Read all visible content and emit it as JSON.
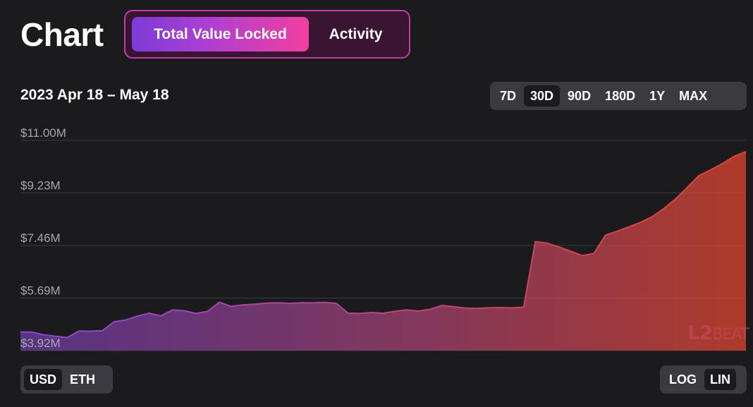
{
  "header": {
    "title": "Chart",
    "metric_tabs": [
      {
        "label": "Total Value Locked",
        "active": true
      },
      {
        "label": "Activity",
        "active": false
      }
    ]
  },
  "date_range": "2023 Apr 18 – May 18",
  "range_buttons": [
    {
      "label": "7D",
      "active": false
    },
    {
      "label": "30D",
      "active": true
    },
    {
      "label": "90D",
      "active": false
    },
    {
      "label": "180D",
      "active": false
    },
    {
      "label": "1Y",
      "active": false
    },
    {
      "label": "MAX",
      "active": false
    }
  ],
  "unit_toggle": [
    {
      "label": "USD",
      "active": true
    },
    {
      "label": "ETH",
      "active": false
    }
  ],
  "scale_toggle": [
    {
      "label": "LOG",
      "active": false
    },
    {
      "label": "LIN",
      "active": true
    }
  ],
  "watermark": {
    "left": "L",
    "num": "2",
    "right": "BEAT"
  },
  "colors": {
    "background": "#1b1a1d",
    "gradient_start": "#7d3bd8",
    "gradient_end": "#f23fa0",
    "area_start": "#8a48d6",
    "area_end": "#e0452f",
    "grid": "#3a3a40",
    "axis_text": "#a6a6ab"
  },
  "chart_data": {
    "type": "area",
    "title": "Total Value Locked",
    "y_ticks": [
      "$11.00M",
      "$9.23M",
      "$7.46M",
      "$5.69M",
      "$3.92M"
    ],
    "y_tick_values": [
      11.0,
      9.23,
      7.46,
      5.69,
      3.92
    ],
    "ylim": [
      3.92,
      11.0
    ],
    "y_unit": "$M",
    "grid": true,
    "x_range": [
      "2023-04-18",
      "2023-05-18"
    ],
    "series": [
      {
        "values": [
          4.55,
          4.54,
          4.45,
          4.4,
          4.36,
          4.58,
          4.57,
          4.59,
          4.89,
          4.95,
          5.08,
          5.18,
          5.09,
          5.29,
          5.26,
          5.17,
          5.24,
          5.55,
          5.41,
          5.46,
          5.48,
          5.52,
          5.53,
          5.51,
          5.53,
          5.53,
          5.54,
          5.51,
          5.18,
          5.17,
          5.2,
          5.18,
          5.24,
          5.29,
          5.25,
          5.31,
          5.44,
          5.4,
          5.35,
          5.34,
          5.36,
          5.37,
          5.36,
          5.38,
          7.59,
          7.54,
          7.41,
          7.27,
          7.12,
          7.19,
          7.81,
          7.94,
          8.09,
          8.24,
          8.43,
          8.71,
          9.03,
          9.42,
          9.82,
          10.01,
          10.22,
          10.46,
          10.62
        ]
      }
    ]
  }
}
